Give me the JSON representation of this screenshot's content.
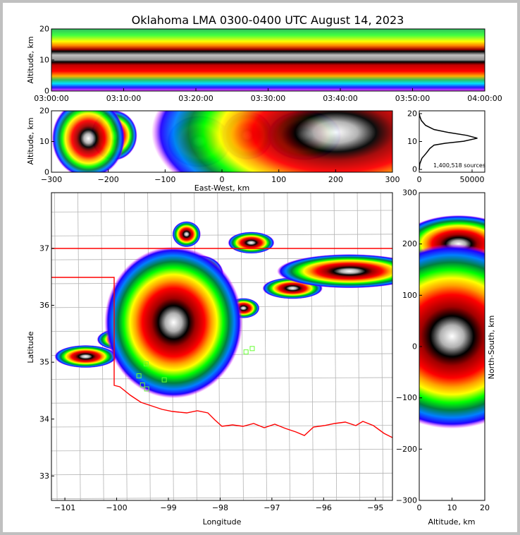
{
  "title": "Oklahoma LMA 0300-0400 UTC August 14, 2023",
  "colors": {
    "border_state": "#ff0000",
    "county": "#b4b4b4",
    "station": "#66ff33"
  },
  "chart_data": [
    {
      "name": "time-height",
      "type": "heatmap",
      "ylabel": "Altitude, km",
      "ylim": [
        0,
        20
      ],
      "yticks": [
        "0",
        "10",
        "20"
      ],
      "xticks": [
        "03:00:00",
        "03:10:00",
        "03:20:00",
        "03:30:00",
        "03:40:00",
        "03:50:00",
        "04:00:00"
      ],
      "xlim": [
        "03:00:00",
        "04:00:00"
      ],
      "peak_altitude_km": 11.5
    },
    {
      "name": "east-west-height",
      "type": "heatmap",
      "xlabel": "East-West, km",
      "ylabel": "Altitude, km",
      "xlim": [
        -300,
        300
      ],
      "ylim": [
        0,
        20
      ],
      "xticks": [
        "-300",
        "-200",
        "-100",
        "0",
        "100",
        "200",
        "300"
      ],
      "yticks": [
        "0",
        "10",
        "20"
      ],
      "cores": [
        {
          "x": -190,
          "alt": 12,
          "rx": 25,
          "ry": 5,
          "level": 0.55
        },
        {
          "x": -235,
          "alt": 11,
          "rx": 25,
          "ry": 5,
          "level": 0.35
        },
        {
          "x": -40,
          "alt": 10,
          "rx": 60,
          "ry": 9,
          "level": 0.95
        },
        {
          "x": 45,
          "alt": 12,
          "rx": 45,
          "ry": 8,
          "level": 0.9
        },
        {
          "x": 145,
          "alt": 12,
          "rx": 40,
          "ry": 5,
          "level": 0.55
        },
        {
          "x": 200,
          "alt": 13,
          "rx": 90,
          "ry": 8,
          "level": 0.25
        }
      ]
    },
    {
      "name": "altitude-histogram",
      "type": "line",
      "annotation": "1,400,518 sources",
      "xlim": [
        0,
        62000
      ],
      "ylim": [
        -1,
        21
      ],
      "xticks": [
        "0",
        "50000"
      ],
      "yticks": [
        "0",
        "10",
        "20"
      ],
      "points": [
        [
          0,
          0
        ],
        [
          500,
          2
        ],
        [
          2500,
          4
        ],
        [
          7000,
          6
        ],
        [
          10000,
          7.5
        ],
        [
          14000,
          8.7
        ],
        [
          25000,
          9.4
        ],
        [
          42000,
          10.1
        ],
        [
          55000,
          11.2
        ],
        [
          45000,
          12.2
        ],
        [
          28000,
          13.2
        ],
        [
          14000,
          14.3
        ],
        [
          6000,
          15.8
        ],
        [
          2000,
          17.5
        ],
        [
          500,
          19
        ],
        [
          0,
          20
        ]
      ]
    },
    {
      "name": "plan-view",
      "type": "heatmap",
      "xlabel": "Longitude",
      "ylabel": "Latitude",
      "xlim": [
        -101.26,
        -94.67
      ],
      "ylim": [
        32.57,
        37.98
      ],
      "xticks": [
        "-101",
        "-100",
        "-99",
        "-98",
        "-97",
        "-96",
        "-95"
      ],
      "yticks": [
        "33",
        "34",
        "35",
        "36",
        "37"
      ],
      "cores": [
        {
          "lon": -98.15,
          "lat": 35.8,
          "rx": 0.5,
          "ry": 0.38,
          "level": 0.95
        },
        {
          "lon": -97.55,
          "lat": 35.95,
          "rx": 0.35,
          "ry": 0.2,
          "level": 0.9
        },
        {
          "lon": -98.4,
          "lat": 36.55,
          "rx": 0.35,
          "ry": 0.25,
          "level": 0.6
        },
        {
          "lon": -97.4,
          "lat": 37.1,
          "rx": 0.28,
          "ry": 0.12,
          "level": 0.5
        },
        {
          "lon": -98.65,
          "lat": 37.25,
          "rx": 0.12,
          "ry": 0.1,
          "level": 0.35
        },
        {
          "lon": -96.6,
          "lat": 36.3,
          "rx": 0.4,
          "ry": 0.13,
          "level": 0.55
        },
        {
          "lon": -95.5,
          "lat": 36.6,
          "rx": 0.7,
          "ry": 0.15,
          "level": 0.4
        },
        {
          "lon": -99.9,
          "lat": 35.4,
          "rx": 0.3,
          "ry": 0.12,
          "level": 0.5
        },
        {
          "lon": -100.6,
          "lat": 35.1,
          "rx": 0.3,
          "ry": 0.1,
          "level": 0.4
        },
        {
          "lon": -98.9,
          "lat": 35.7,
          "rx": 0.5,
          "ry": 0.5,
          "level": 0.3
        }
      ],
      "stations": [
        [
          -99.43,
          34.97
        ],
        [
          -99.57,
          34.76
        ],
        [
          -99.5,
          34.6
        ],
        [
          -99.42,
          34.53
        ],
        [
          -99.08,
          34.69
        ],
        [
          -97.38,
          35.24
        ],
        [
          -97.5,
          35.18
        ]
      ]
    },
    {
      "name": "north-south-height",
      "type": "heatmap",
      "xlabel": "Altitude, km",
      "ylabel": "North-South, km",
      "xlim": [
        0,
        20
      ],
      "ylim": [
        -300,
        300
      ],
      "xticks": [
        "0",
        "10",
        "20"
      ],
      "yticks": [
        "-300",
        "-200",
        "-100",
        "0",
        "100",
        "200",
        "300"
      ],
      "cores": [
        {
          "alt": 11,
          "y": 60,
          "rx": 7,
          "ry": 45,
          "level": 0.95
        },
        {
          "alt": 12,
          "y": 135,
          "rx": 5,
          "ry": 25,
          "level": 0.7
        },
        {
          "alt": 12,
          "y": 200,
          "rx": 8,
          "ry": 25,
          "level": 0.4
        },
        {
          "alt": 10,
          "y": 20,
          "rx": 10,
          "ry": 60,
          "level": 0.3
        }
      ]
    }
  ]
}
